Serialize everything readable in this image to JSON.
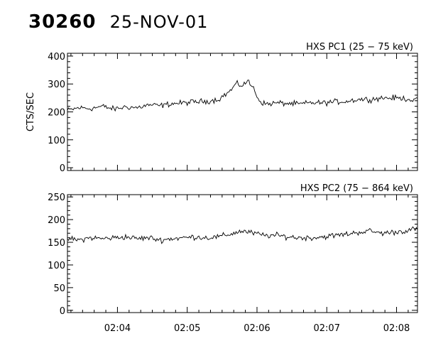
{
  "header": {
    "orbit": "30260",
    "date": "25-NOV-01"
  },
  "chart_data": [
    {
      "type": "line",
      "title": "HXS PC1 (25 − 75 keV)",
      "ylabel": "CTS/SEC",
      "ylim": [
        -10,
        410
      ],
      "yticks": [
        0,
        100,
        200,
        300,
        400
      ],
      "grid": false,
      "xlim": [
        "02:03:17",
        "02:08:18"
      ],
      "xticks": [
        "02:04",
        "02:05",
        "02:06",
        "02:07",
        "02:08"
      ],
      "series": [
        {
          "x": [
            "02:03:17",
            "02:03:27",
            "02:03:37",
            "02:03:47",
            "02:03:57",
            "02:04:07",
            "02:04:17",
            "02:04:27",
            "02:04:37",
            "02:04:47",
            "02:04:57",
            "02:05:07",
            "02:05:17",
            "02:05:27",
            "02:05:37",
            "02:05:42",
            "02:05:47",
            "02:05:52",
            "02:05:57",
            "02:06:02",
            "02:06:07",
            "02:06:17",
            "02:06:27",
            "02:06:37",
            "02:06:47",
            "02:06:57",
            "02:07:07",
            "02:07:17",
            "02:07:27",
            "02:07:37",
            "02:07:47",
            "02:07:57",
            "02:08:07",
            "02:08:18"
          ],
          "values": [
            205,
            215,
            212,
            220,
            210,
            218,
            215,
            225,
            222,
            230,
            232,
            236,
            238,
            245,
            275,
            300,
            295,
            310,
            285,
            240,
            228,
            232,
            230,
            228,
            233,
            232,
            236,
            238,
            245,
            245,
            250,
            250,
            248,
            240
          ]
        }
      ]
    },
    {
      "type": "line",
      "title": "HXS PC2 (75 − 864 keV)",
      "ylabel": "",
      "ylim": [
        -5,
        255
      ],
      "yticks": [
        0,
        50,
        100,
        150,
        200,
        250
      ],
      "grid": false,
      "xlim": [
        "02:03:17",
        "02:08:18"
      ],
      "xticks": [
        "02:04",
        "02:05",
        "02:06",
        "02:07",
        "02:08"
      ],
      "series": [
        {
          "x": [
            "02:03:17",
            "02:03:27",
            "02:03:37",
            "02:03:47",
            "02:03:57",
            "02:04:07",
            "02:04:17",
            "02:04:27",
            "02:04:37",
            "02:04:47",
            "02:04:57",
            "02:05:07",
            "02:05:17",
            "02:05:27",
            "02:05:37",
            "02:05:47",
            "02:05:57",
            "02:06:07",
            "02:06:17",
            "02:06:27",
            "02:06:37",
            "02:06:47",
            "02:06:57",
            "02:07:07",
            "02:07:17",
            "02:07:27",
            "02:07:37",
            "02:07:47",
            "02:07:57",
            "02:08:07",
            "02:08:18"
          ],
          "values": [
            158,
            155,
            160,
            158,
            160,
            162,
            158,
            160,
            155,
            158,
            160,
            162,
            160,
            162,
            168,
            175,
            170,
            165,
            165,
            162,
            160,
            160,
            162,
            165,
            168,
            172,
            175,
            170,
            172,
            175,
            180
          ]
        }
      ]
    }
  ]
}
